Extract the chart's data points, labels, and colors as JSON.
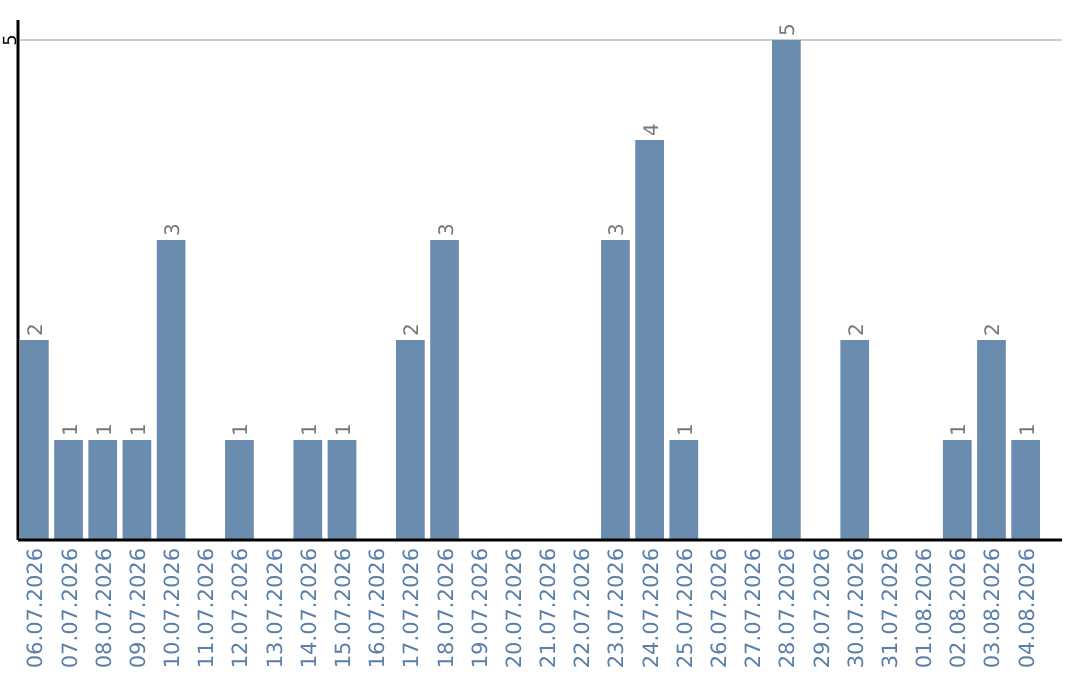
{
  "chart_data": {
    "type": "bar",
    "categories": [
      "06.07.2026",
      "07.07.2026",
      "08.07.2026",
      "09.07.2026",
      "10.07.2026",
      "11.07.2026",
      "12.07.2026",
      "13.07.2026",
      "14.07.2026",
      "15.07.2026",
      "16.07.2026",
      "17.07.2026",
      "18.07.2026",
      "19.07.2026",
      "20.07.2026",
      "21.07.2026",
      "22.07.2026",
      "23.07.2026",
      "24.07.2026",
      "25.07.2026",
      "26.07.2026",
      "27.07.2026",
      "28.07.2026",
      "29.07.2026",
      "30.07.2026",
      "31.07.2026",
      "01.08.2026",
      "02.08.2026",
      "03.08.2026",
      "04.08.2026"
    ],
    "values": [
      2,
      1,
      1,
      1,
      3,
      0,
      1,
      0,
      1,
      1,
      0,
      2,
      3,
      0,
      0,
      0,
      0,
      3,
      4,
      1,
      0,
      0,
      5,
      0,
      2,
      0,
      0,
      1,
      2,
      1
    ],
    "value_labels": [
      "2",
      "1",
      "1",
      "1",
      "3",
      null,
      "1",
      null,
      "1",
      "1",
      null,
      "2",
      "3",
      null,
      null,
      null,
      null,
      "3",
      "4",
      "1",
      null,
      null,
      "5",
      null,
      "2",
      null,
      null,
      "1",
      "2",
      "1"
    ],
    "color": "#6a8caf",
    "ylim": [
      0,
      5.2
    ],
    "yticks": [
      5
    ],
    "grid": "y"
  }
}
